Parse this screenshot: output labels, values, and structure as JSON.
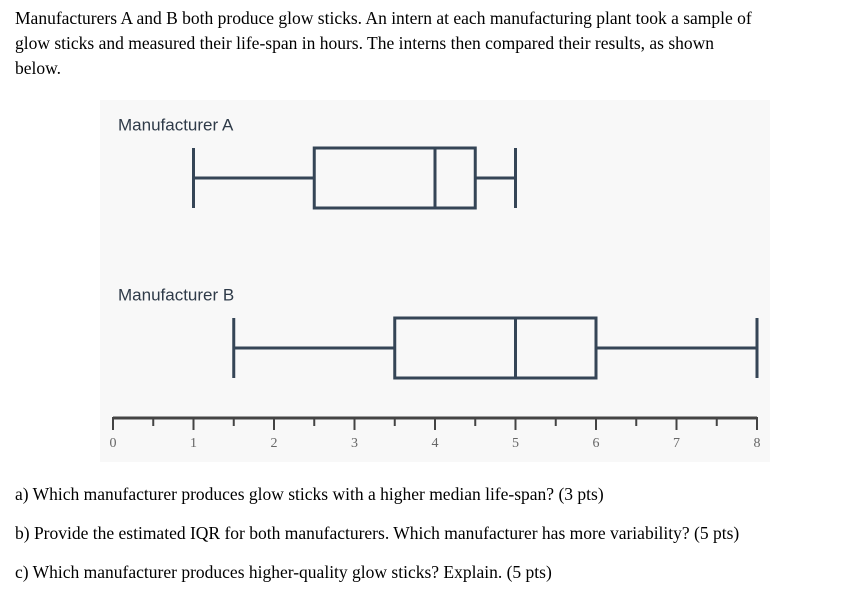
{
  "intro": [
    "Manufacturers A and B both produce glow sticks. An intern at each manufacturing plant took a sample of",
    "glow sticks and measured their life-span in hours. The interns then compared their results, as shown",
    "below."
  ],
  "chart_data": {
    "type": "box",
    "color": "#354556",
    "series": [
      {
        "name": "Manufacturer A",
        "min": 1,
        "q1": 2.5,
        "median": 4,
        "q3": 4.5,
        "max": 5
      },
      {
        "name": "Manufacturer B",
        "min": 1.5,
        "q1": 3.5,
        "median": 5,
        "q3": 6,
        "max": 8
      }
    ],
    "xlim": [
      0,
      8
    ],
    "xticks": [
      0,
      1,
      2,
      3,
      4,
      5,
      6,
      7,
      8
    ],
    "xminorticks": [
      0.5,
      1.5,
      2.5,
      3.5,
      4.5,
      5.5,
      6.5,
      7.5
    ]
  },
  "questions": [
    "a) Which manufacturer produces glow sticks with a higher median life-span? (3 pts)",
    "b) Provide the estimated IQR for both manufacturers. Which manufacturer has more variability? (5 pts)",
    "c) Which manufacturer produces higher-quality glow sticks? Explain. (5 pts)"
  ]
}
